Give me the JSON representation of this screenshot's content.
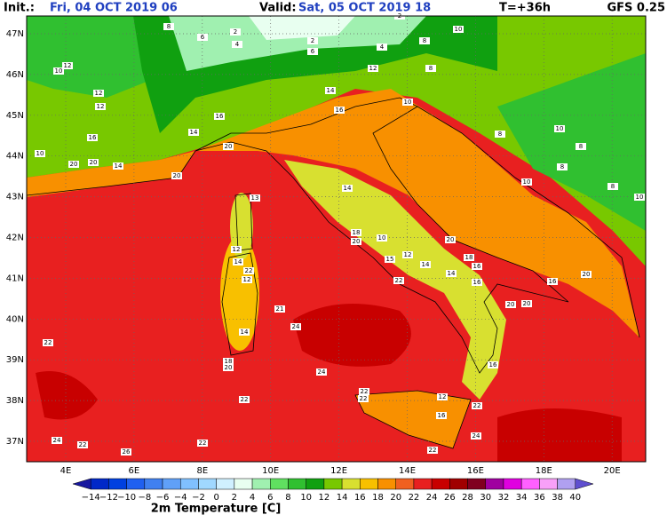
{
  "header": {
    "init_label": "Init.:",
    "init": "Fri, 04 OCT 2019  06",
    "valid_label": "Valid:",
    "valid": "Sat, 05 OCT 2019  18",
    "lead": "T=+36h",
    "model": "GFS 0.25"
  },
  "lat_labels": [
    "47N",
    "46N",
    "45N",
    "44N",
    "43N",
    "42N",
    "41N",
    "40N",
    "39N",
    "38N",
    "37N"
  ],
  "lon_labels": [
    "4E",
    "6E",
    "8E",
    "10E",
    "12E",
    "14E",
    "16E",
    "18E",
    "20E"
  ],
  "colorbar": {
    "labels": [
      "−14",
      "−12",
      "−10",
      "−8",
      "−6",
      "−4",
      "−2",
      "0",
      "2",
      "4",
      "6",
      "8",
      "10",
      "12",
      "14",
      "16",
      "18",
      "20",
      "22",
      "24",
      "26",
      "28",
      "30",
      "32",
      "34",
      "36",
      "38",
      "40"
    ],
    "colors": [
      "#1818a0",
      "#0028c8",
      "#0040e0",
      "#2060f0",
      "#4080f0",
      "#60a0f8",
      "#80c0ff",
      "#a0d8ff",
      "#d0f0ff",
      "#e8fff0",
      "#a0f0b0",
      "#60e060",
      "#30c030",
      "#10a010",
      "#78c800",
      "#d8e030",
      "#f8c000",
      "#f89000",
      "#f06020",
      "#e82020",
      "#c80000",
      "#a00000",
      "#800020",
      "#a000a0",
      "#e000e0",
      "#ff60ff",
      "#f8a0f8",
      "#b0a0f0",
      "#6050d0"
    ]
  },
  "caption": "2m Temperature [C]",
  "stations": [
    "2",
    "8",
    "6",
    "2",
    "4",
    "2",
    "6",
    "4",
    "8",
    "10",
    "12",
    "8",
    "14",
    "16",
    "12",
    "12",
    "10",
    "12",
    "16",
    "10",
    "20",
    "20",
    "14",
    "20",
    "20",
    "14",
    "16",
    "10",
    "8",
    "10",
    "8",
    "8",
    "10",
    "8",
    "10",
    "13",
    "14",
    "18",
    "20",
    "10",
    "20",
    "18",
    "16",
    "12",
    "14",
    "15",
    "22",
    "14",
    "16",
    "16",
    "20",
    "20",
    "20",
    "21",
    "24",
    "22",
    "14",
    "18",
    "20",
    "24",
    "16",
    "22",
    "22",
    "22",
    "12",
    "22",
    "16",
    "24",
    "22",
    "24",
    "22",
    "26",
    "22",
    "12",
    "14",
    "12",
    "22"
  ]
}
